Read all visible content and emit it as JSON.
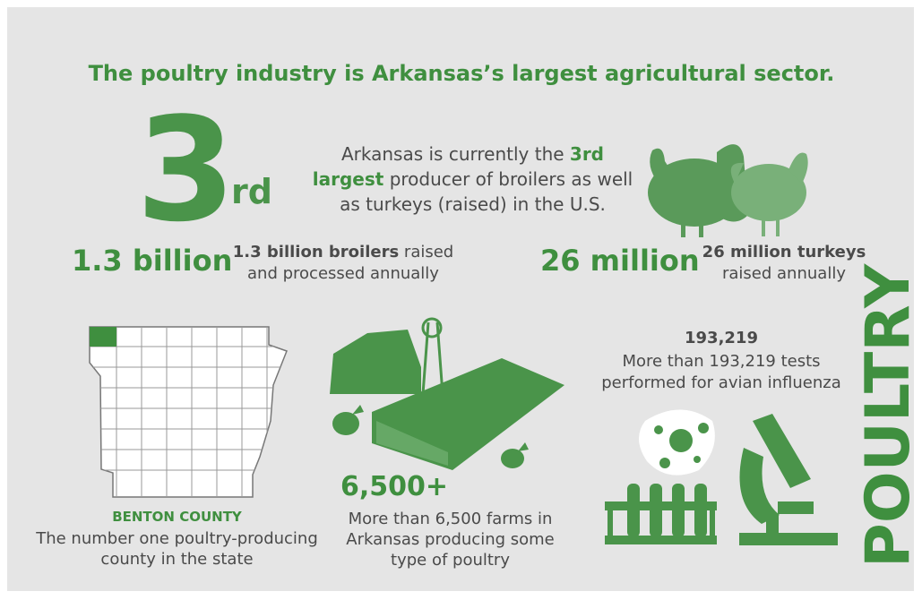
{
  "title": "The poultry industry is Arkansas’s largest agricultural sector.",
  "rank": {
    "number": "3",
    "suffix": "rd",
    "text_before": "Arkansas is currently the",
    "text_bold": "3rd largest",
    "text_after": "producer of broilers as well as turkeys (raised) in the U.S."
  },
  "broilers": {
    "figure": "1.3 billion",
    "bold": "1.3 billion broilers",
    "text": "raised and processed annually"
  },
  "turkeys": {
    "figure": "26 million",
    "bold": "26 million turkeys",
    "text": "raised annually"
  },
  "county": {
    "name": "BENTON COUNTY",
    "text": "The number one poultry-producing county in the state"
  },
  "farms": {
    "figure": "6,500+",
    "text": "More than 6,500 farms in Arkansas producing some type of poultry"
  },
  "tests": {
    "figure": "193,219",
    "text": "More than 193,219 tests performed for avian influenza"
  },
  "side_label": "POULTRY"
}
